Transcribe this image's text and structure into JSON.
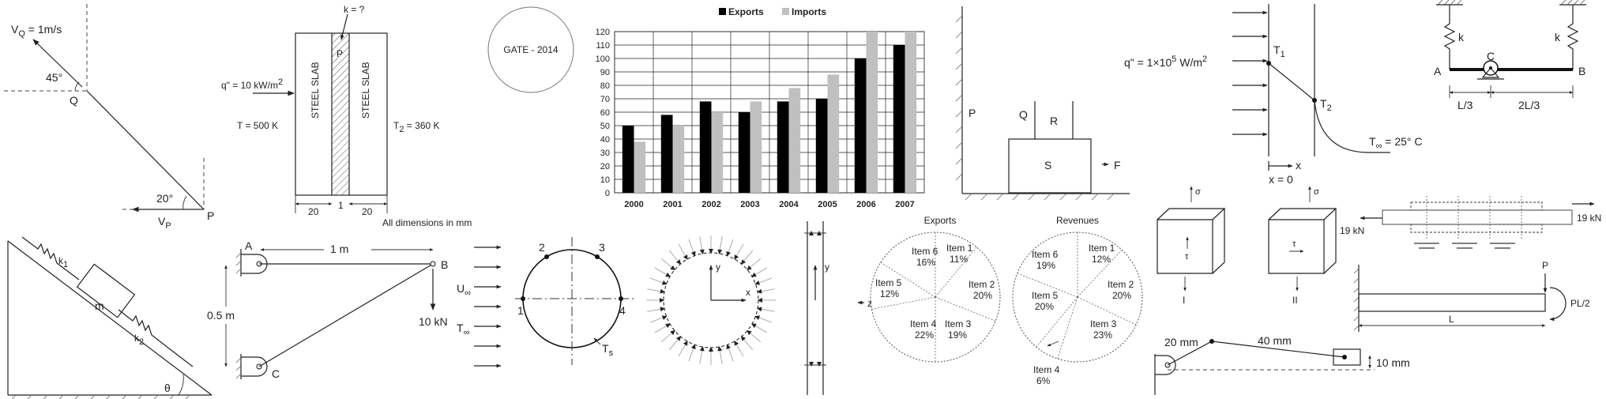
{
  "velocity_panel": {
    "vq": "V",
    "vq_sub": "Q",
    "vq_val": " = 1m/s",
    "angle_45": "45°",
    "point_q": "Q",
    "angle_20": "20°",
    "vp": "V",
    "vp_sub": "P",
    "point_p": "P"
  },
  "slab_panel": {
    "k_label": "k = ?",
    "p_label": "P",
    "flux": "q\" = 10 kW/m",
    "flux_sup": "2",
    "slab_left": "STEEL SLAB",
    "slab_right": "STEEL SLAB",
    "t_left": "T",
    "t_left_val": " = 500 K",
    "t_right": "T",
    "t_right_sub": "2",
    "t_right_val": " = 360 K",
    "dim_left": "20",
    "dim_mid": "1",
    "dim_right": "20",
    "note": "All dimensions in mm"
  },
  "gate_label": "GATE - 2014",
  "chart_data": {
    "type": "bar",
    "categories": [
      "2000",
      "2001",
      "2002",
      "2003",
      "2004",
      "2005",
      "2006",
      "2007"
    ],
    "series": [
      {
        "name": "Exports",
        "values": [
          50,
          58,
          68,
          60,
          68,
          70,
          100,
          110
        ],
        "color": "#000000"
      },
      {
        "name": "Imports",
        "values": [
          38,
          50,
          60,
          68,
          78,
          88,
          120,
          120
        ],
        "color": "#c0c0c0"
      }
    ],
    "yticks": [
      "0",
      "10",
      "20",
      "30",
      "40",
      "50",
      "60",
      "70",
      "80",
      "90",
      "100",
      "110",
      "120"
    ],
    "ylim": [
      0,
      120
    ],
    "legend_position": "top"
  },
  "blocks_panel": {
    "p": "P",
    "q": "Q",
    "r": "R",
    "s": "S",
    "f": "F"
  },
  "heat_panel": {
    "flux": "q\" = 1×10",
    "flux_exp": "5",
    "flux_unit": " W/m",
    "flux_sup": "2",
    "t1": "T",
    "t1_sub": "1",
    "t2": "T",
    "t2_sub": "2",
    "tinf": "T",
    "tinf_sub": "∞",
    "tinf_val": " = 25° C",
    "x": "x",
    "x0": "x = 0"
  },
  "beam_panel": {
    "k_left": "k",
    "k_right": "k",
    "c": "C",
    "a": "A",
    "b": "B",
    "l3": "L/3",
    "l23": "2L/3"
  },
  "incline_panel": {
    "k1": "k",
    "k1_sub": "1",
    "m": "m",
    "k2": "k",
    "k2_sub": "2",
    "theta": "θ"
  },
  "truss_panel": {
    "a": "A",
    "dim_1m": "1 m",
    "b": "B",
    "dim_05m": "0.5 m",
    "load": "10 kN",
    "c": "C"
  },
  "cylinder_panel": {
    "u": "U",
    "u_sub": "∞",
    "t": "T",
    "t_sub": "∞",
    "p1": "1",
    "p2": "2",
    "p3": "3",
    "p4": "4",
    "ts": "T",
    "ts_sub": "s"
  },
  "pressure_panel": {
    "y": "y",
    "x": "x"
  },
  "channel_panel": {
    "y": "y",
    "z": "z"
  },
  "pie_exports": {
    "title": "Exports",
    "slices": [
      {
        "label": "Item 1",
        "value": "11%"
      },
      {
        "label": "Item 2",
        "value": "20%"
      },
      {
        "label": "Item 3",
        "value": "19%"
      },
      {
        "label": "Item 4",
        "value": "22%"
      },
      {
        "label": "Item 5",
        "value": "12%"
      },
      {
        "label": "Item 6",
        "value": "16%"
      }
    ]
  },
  "pie_revenues": {
    "title": "Revenues",
    "slices": [
      {
        "label": "Item 1",
        "value": "12%"
      },
      {
        "label": "Item 2",
        "value": "20%"
      },
      {
        "label": "Item 3",
        "value": "23%"
      },
      {
        "label": "Item 4",
        "value": "6%"
      },
      {
        "label": "Item 5",
        "value": "20%"
      },
      {
        "label": "Item 6",
        "value": "19%"
      }
    ]
  },
  "stress_panel": {
    "sigma1": "σ",
    "tau1": "τ",
    "roman1": "I",
    "sigma2": "σ",
    "tau2": "τ",
    "roman2": "II"
  },
  "bolted_panel": {
    "left_force": "19 kN",
    "right_force": "19 kN"
  },
  "cantilever_panel": {
    "p": "P",
    "moment": "PL/2",
    "l": "L"
  },
  "crank_panel": {
    "crank": "20 mm",
    "rod": "40 mm",
    "offset": "10 mm"
  }
}
